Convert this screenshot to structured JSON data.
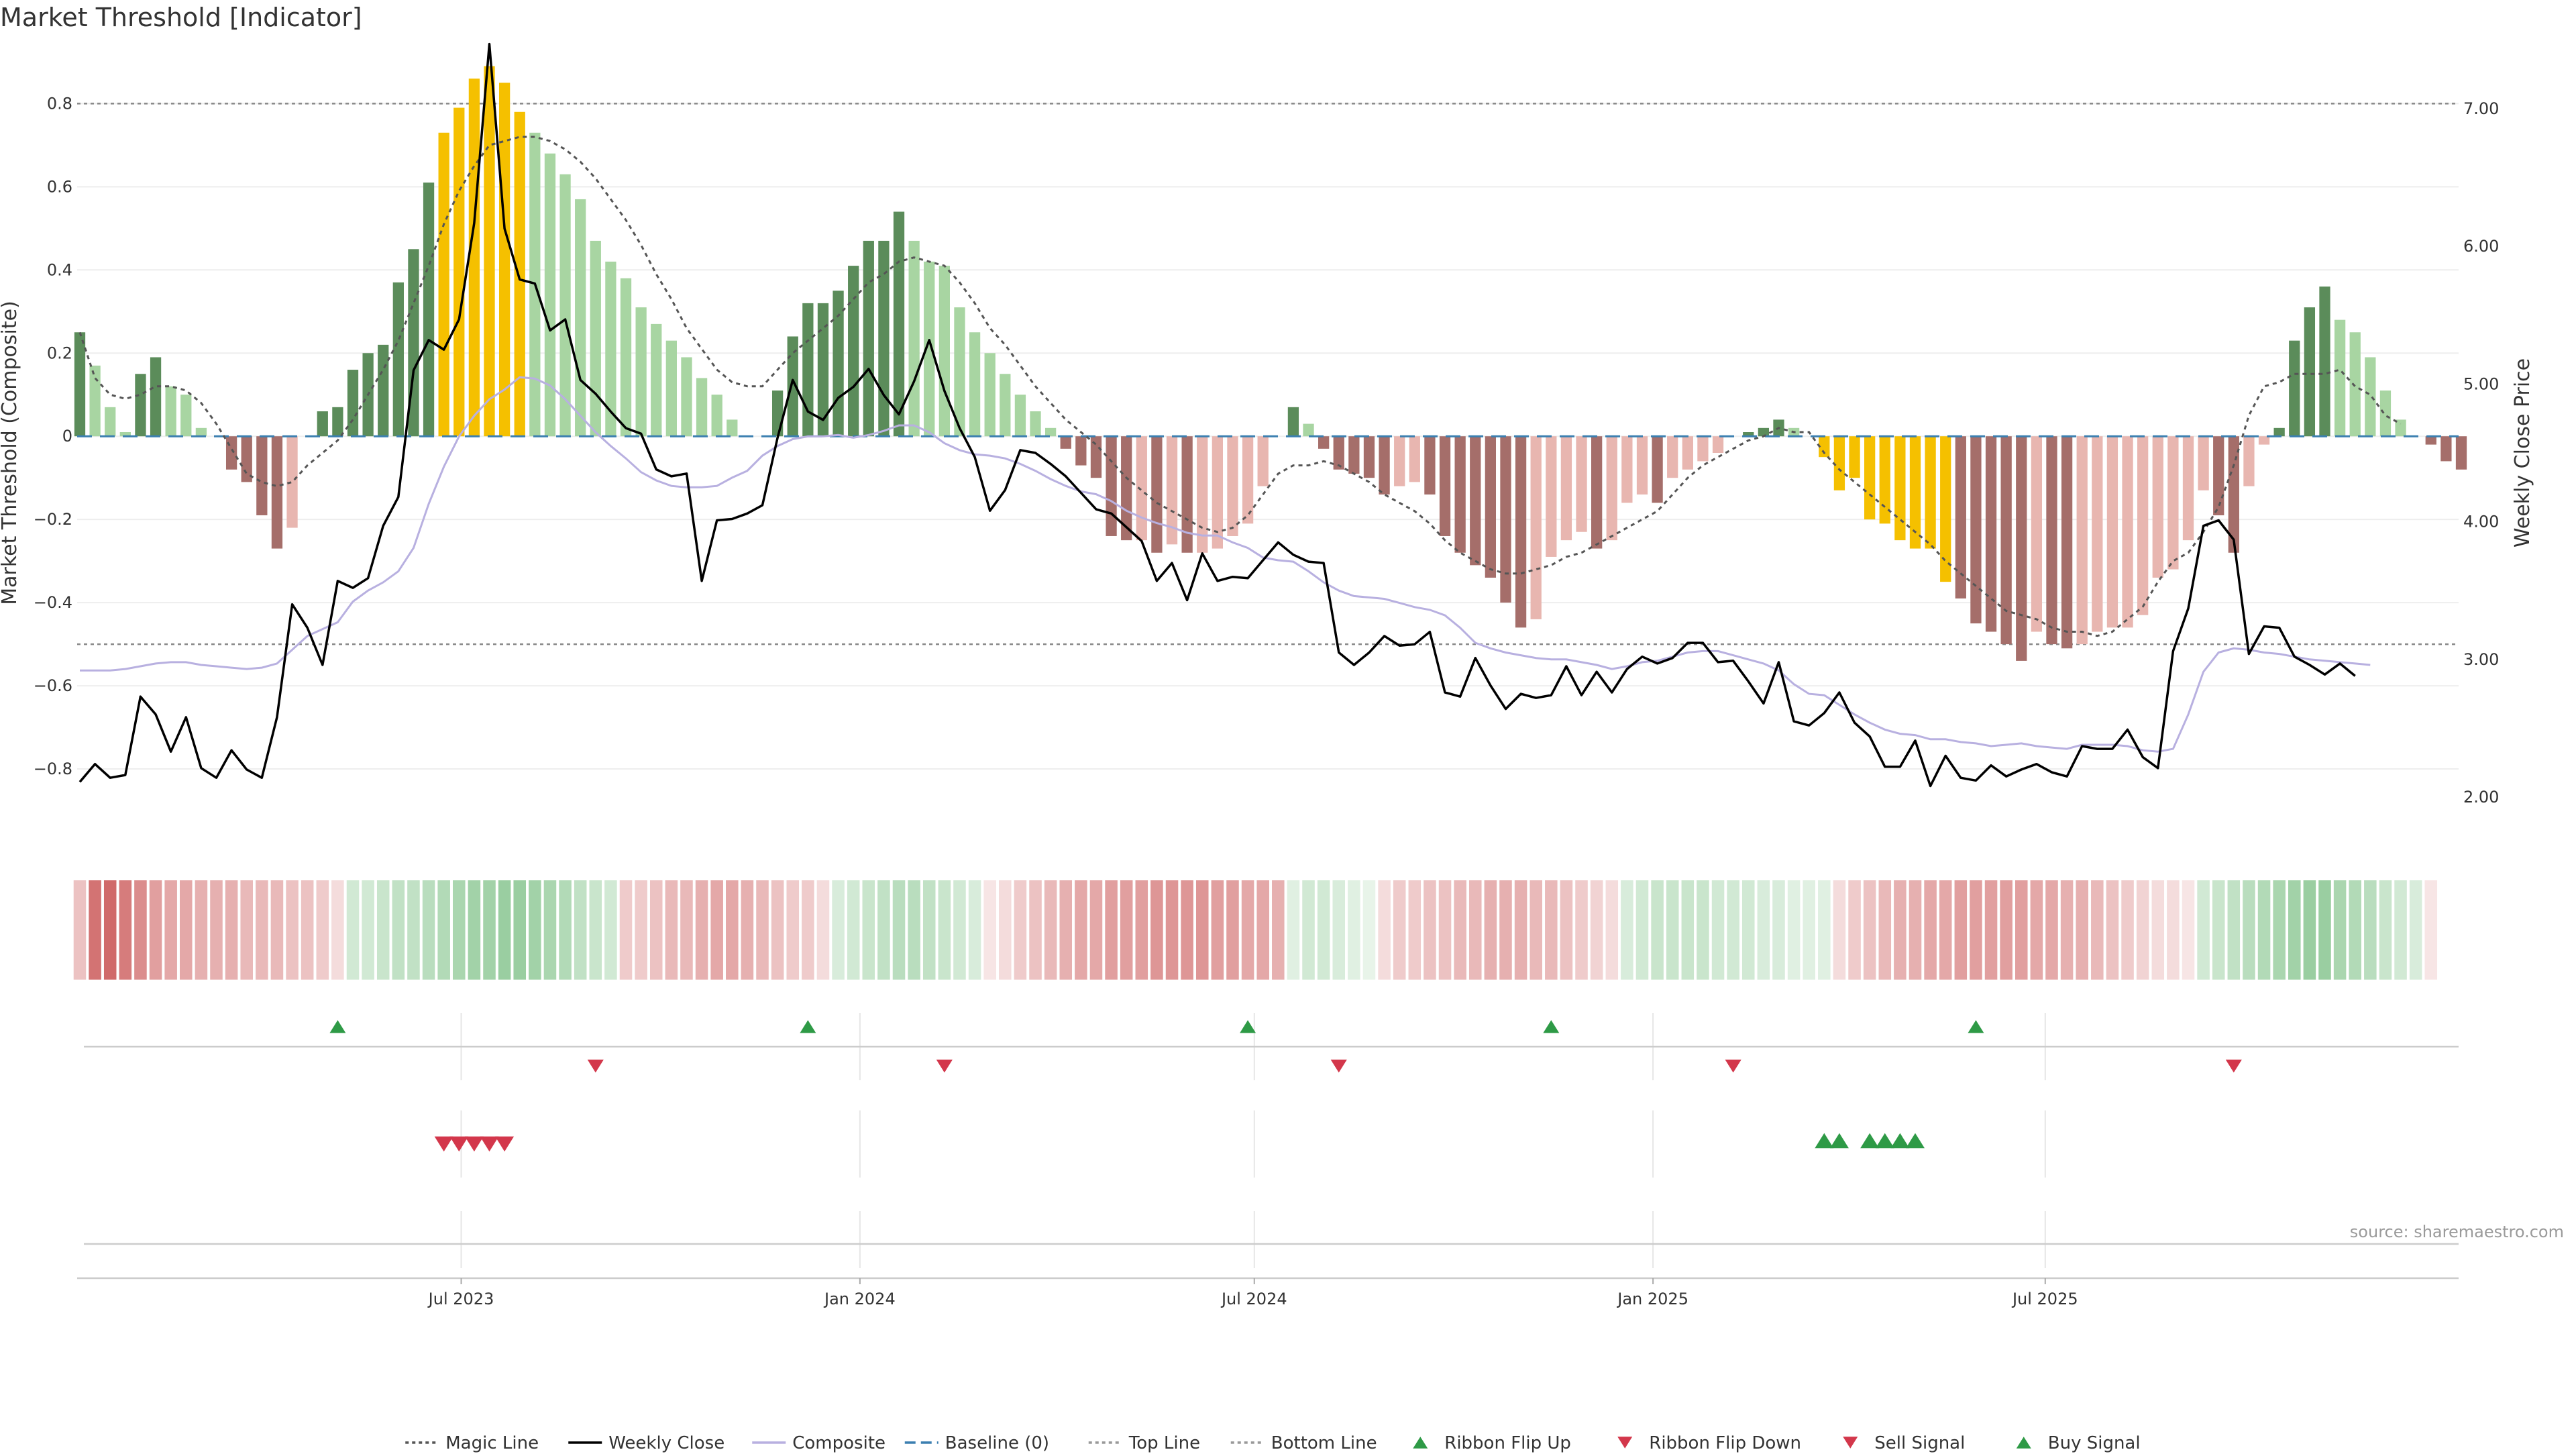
{
  "title": "Market Threshold [Indicator]",
  "source": "source: sharemaestro.com",
  "colors": {
    "bar_pos_strong": "#5b8c5a",
    "bar_pos_weak": "#a8d5a2",
    "bar_neg_strong": "#a56e6a",
    "bar_neg_weak": "#e8b6b0",
    "bar_extreme": "#f5c000",
    "magic": "#555555",
    "close": "#000000",
    "composite": "#b8b0e0",
    "baseline": "#3b7fb0",
    "guide": "#888888",
    "buy": "#2e9a46",
    "sell": "#d3374b"
  },
  "chart_data": [
    {
      "type": "bar",
      "name": "Market Threshold (Composite)",
      "x_start": "2023-01-06",
      "x_step_days": 7,
      "ylabel": "Market Threshold (Composite)",
      "y2label": "Weekly Close Price",
      "ylim": [
        -1.0,
        0.92
      ],
      "y2lim": [
        1.6,
        7.4
      ],
      "yticks": [
        0.8,
        0.6,
        0.4,
        0.2,
        0,
        -0.2,
        -0.4,
        -0.6,
        -0.8
      ],
      "ytick_labels": [
        "0.8",
        "0.6",
        "0.4",
        "0.2",
        "0",
        "−0.2",
        "−0.4",
        "−0.6",
        "−0.8"
      ],
      "y2ticks": [
        7.0,
        6.0,
        5.0,
        4.0,
        3.0,
        2.0
      ],
      "y2tick_labels": [
        "7.00",
        "6.00",
        "5.00",
        "4.00",
        "3.00",
        "2.00"
      ],
      "xticks": [
        {
          "date": "2023-07-01",
          "label": "Jul 2023"
        },
        {
          "date": "2024-01-01",
          "label": "Jan 2024"
        },
        {
          "date": "2024-07-01",
          "label": "Jul 2024"
        },
        {
          "date": "2025-01-01",
          "label": "Jan 2025"
        },
        {
          "date": "2025-07-01",
          "label": "Jul 2025"
        }
      ],
      "top_line": 0.8,
      "bottom_line": -0.5,
      "bars": [
        0.25,
        0.17,
        0.07,
        0.01,
        0.15,
        0.19,
        0.12,
        0.1,
        0.02,
        0,
        -0.08,
        -0.11,
        -0.19,
        -0.27,
        -0.22,
        0,
        0.06,
        0.07,
        0.16,
        0.2,
        0.22,
        0.37,
        0.45,
        0.61,
        0.73,
        0.79,
        0.86,
        0.89,
        0.85,
        0.78,
        0.73,
        0.68,
        0.63,
        0.57,
        0.47,
        0.42,
        0.38,
        0.31,
        0.27,
        0.23,
        0.19,
        0.14,
        0.1,
        0.04,
        0,
        0,
        0.11,
        0.24,
        0.32,
        0.32,
        0.35,
        0.41,
        0.47,
        0.47,
        0.54,
        0.47,
        0.42,
        0.41,
        0.31,
        0.25,
        0.2,
        0.15,
        0.1,
        0.06,
        0.02,
        -0.03,
        -0.07,
        -0.1,
        -0.24,
        -0.25,
        -0.25,
        -0.28,
        -0.26,
        -0.28,
        -0.28,
        -0.27,
        -0.24,
        -0.21,
        -0.12,
        0,
        0.07,
        0.03,
        -0.03,
        -0.08,
        -0.09,
        -0.1,
        -0.14,
        -0.12,
        -0.11,
        -0.14,
        -0.24,
        -0.28,
        -0.31,
        -0.34,
        -0.4,
        -0.46,
        -0.44,
        -0.29,
        -0.25,
        -0.23,
        -0.27,
        -0.25,
        -0.16,
        -0.14,
        -0.16,
        -0.1,
        -0.08,
        -0.06,
        -0.04,
        0,
        0.01,
        0.02,
        0.04,
        0.02,
        0,
        -0.05,
        -0.13,
        -0.1,
        -0.2,
        -0.21,
        -0.25,
        -0.27,
        -0.27,
        -0.35,
        -0.39,
        -0.45,
        -0.47,
        -0.5,
        -0.54,
        -0.47,
        -0.5,
        -0.51,
        -0.5,
        -0.47,
        -0.46,
        -0.46,
        -0.43,
        -0.34,
        -0.32,
        -0.25,
        -0.13,
        -0.19,
        -0.28,
        -0.12,
        -0.02,
        0.02,
        0.23,
        0.31,
        0.36,
        0.28,
        0.25,
        0.19,
        0.11,
        0.04,
        0,
        -0.02,
        -0.06,
        -0.08
      ],
      "extreme_bars": [
        24,
        25,
        26,
        27,
        28,
        29,
        115,
        116,
        117,
        118,
        119,
        120,
        121,
        122,
        123
      ],
      "magic_line": [
        0.25,
        0.14,
        0.1,
        0.09,
        0.1,
        0.12,
        0.12,
        0.11,
        0.08,
        0.03,
        -0.03,
        -0.09,
        -0.11,
        -0.12,
        -0.11,
        -0.07,
        -0.04,
        -0.01,
        0.04,
        0.1,
        0.16,
        0.23,
        0.32,
        0.41,
        0.51,
        0.59,
        0.65,
        0.7,
        0.71,
        0.72,
        0.72,
        0.71,
        0.69,
        0.66,
        0.62,
        0.57,
        0.52,
        0.46,
        0.39,
        0.33,
        0.26,
        0.21,
        0.16,
        0.13,
        0.12,
        0.12,
        0.16,
        0.2,
        0.23,
        0.26,
        0.29,
        0.33,
        0.37,
        0.39,
        0.42,
        0.43,
        0.42,
        0.41,
        0.37,
        0.32,
        0.26,
        0.22,
        0.17,
        0.12,
        0.08,
        0.04,
        0.01,
        -0.02,
        -0.06,
        -0.1,
        -0.13,
        -0.16,
        -0.18,
        -0.2,
        -0.22,
        -0.23,
        -0.22,
        -0.19,
        -0.14,
        -0.09,
        -0.07,
        -0.07,
        -0.06,
        -0.07,
        -0.09,
        -0.11,
        -0.14,
        -0.16,
        -0.18,
        -0.21,
        -0.25,
        -0.28,
        -0.3,
        -0.32,
        -0.33,
        -0.33,
        -0.32,
        -0.31,
        -0.29,
        -0.28,
        -0.26,
        -0.24,
        -0.22,
        -0.2,
        -0.18,
        -0.14,
        -0.1,
        -0.07,
        -0.05,
        -0.03,
        -0.01,
        0,
        0.02,
        0.01,
        0.01,
        -0.04,
        -0.08,
        -0.11,
        -0.14,
        -0.17,
        -0.2,
        -0.23,
        -0.26,
        -0.3,
        -0.33,
        -0.36,
        -0.39,
        -0.42,
        -0.43,
        -0.44,
        -0.46,
        -0.47,
        -0.47,
        -0.48,
        -0.47,
        -0.44,
        -0.41,
        -0.35,
        -0.3,
        -0.28,
        -0.23,
        -0.17,
        -0.07,
        0.05,
        0.12,
        0.13,
        0.15,
        0.15,
        0.15,
        0.16,
        0.12,
        0.1,
        0.05,
        0.03
      ],
      "composite": [
        2.92,
        2.92,
        2.92,
        2.93,
        2.95,
        2.97,
        2.98,
        2.98,
        2.96,
        2.95,
        2.94,
        2.93,
        2.94,
        2.97,
        3.07,
        3.17,
        3.22,
        3.27,
        3.42,
        3.5,
        3.56,
        3.64,
        3.81,
        4.13,
        4.4,
        4.62,
        4.77,
        4.89,
        4.96,
        5.05,
        5.04,
        4.99,
        4.89,
        4.77,
        4.65,
        4.55,
        4.46,
        4.36,
        4.3,
        4.26,
        4.25,
        4.25,
        4.26,
        4.32,
        4.37,
        4.48,
        4.55,
        4.6,
        4.62,
        4.62,
        4.63,
        4.61,
        4.63,
        4.66,
        4.7,
        4.7,
        4.65,
        4.57,
        4.52,
        4.49,
        4.48,
        4.46,
        4.42,
        4.37,
        4.31,
        4.26,
        4.22,
        4.2,
        4.15,
        4.08,
        4.03,
        3.99,
        3.96,
        3.92,
        3.9,
        3.9,
        3.85,
        3.81,
        3.74,
        3.72,
        3.71,
        3.64,
        3.56,
        3.5,
        3.46,
        3.45,
        3.44,
        3.41,
        3.38,
        3.36,
        3.32,
        3.23,
        3.12,
        3.08,
        3.05,
        3.03,
        3.01,
        3.0,
        3.0,
        2.98,
        2.96,
        2.93,
        2.95,
        2.98,
        2.99,
        3.02,
        3.05,
        3.06,
        3.06,
        3.03,
        3.0,
        2.97,
        2.92,
        2.82,
        2.75,
        2.74,
        2.67,
        2.6,
        2.54,
        2.49,
        2.46,
        2.45,
        2.42,
        2.42,
        2.4,
        2.39,
        2.37,
        2.38,
        2.39,
        2.37,
        2.36,
        2.35,
        2.38,
        2.38,
        2.38,
        2.37,
        2.34,
        2.33,
        2.35,
        2.6,
        2.91,
        3.05,
        3.08,
        3.07,
        3.05,
        3.04,
        3.02,
        3.0,
        2.99,
        2.98,
        2.97,
        2.96
      ],
      "weekly_close": [
        2.11,
        2.24,
        2.14,
        2.16,
        2.73,
        2.6,
        2.33,
        2.58,
        2.21,
        2.14,
        2.34,
        2.2,
        2.14,
        2.58,
        3.4,
        3.23,
        2.96,
        3.57,
        3.52,
        3.59,
        3.97,
        4.18,
        5.1,
        5.32,
        5.25,
        5.47,
        6.17,
        7.47,
        6.13,
        5.76,
        5.73,
        5.39,
        5.47,
        5.03,
        4.93,
        4.8,
        4.68,
        4.64,
        4.38,
        4.33,
        4.35,
        3.57,
        4.01,
        4.02,
        4.06,
        4.12,
        4.61,
        5.03,
        4.8,
        4.74,
        4.9,
        4.98,
        5.11,
        4.92,
        4.78,
        5.02,
        5.32,
        4.95,
        4.68,
        4.47,
        4.08,
        4.23,
        4.52,
        4.5,
        4.42,
        4.33,
        4.21,
        4.09,
        4.06,
        3.96,
        3.86,
        3.57,
        3.7,
        3.43,
        3.77,
        3.57,
        3.6,
        3.59,
        3.72,
        3.85,
        3.76,
        3.71,
        3.7,
        3.05,
        2.96,
        3.05,
        3.17,
        3.1,
        3.11,
        3.2,
        2.76,
        2.73,
        3.01,
        2.81,
        2.64,
        2.75,
        2.72,
        2.74,
        2.95,
        2.74,
        2.91,
        2.76,
        2.93,
        3.02,
        2.97,
        3.01,
        3.12,
        3.12,
        2.98,
        2.99,
        2.84,
        2.68,
        2.98,
        2.55,
        2.52,
        2.61,
        2.76,
        2.54,
        2.44,
        2.22,
        2.22,
        2.41,
        2.08,
        2.3,
        2.14,
        2.12,
        2.23,
        2.15,
        2.2,
        2.24,
        2.18,
        2.15,
        2.37,
        2.35,
        2.35,
        2.49,
        2.29,
        2.21,
        3.06,
        3.37,
        3.97,
        4.01,
        3.87,
        3.04,
        3.24,
        3.23,
        3.02,
        2.96,
        2.89,
        2.97,
        2.88
      ]
    },
    {
      "type": "heatmap",
      "name": "ribbon",
      "values": [
        -0.35,
        -0.8,
        -0.85,
        -0.75,
        -0.65,
        -0.55,
        -0.5,
        -0.5,
        -0.45,
        -0.45,
        -0.45,
        -0.4,
        -0.4,
        -0.4,
        -0.35,
        -0.35,
        -0.3,
        -0.2,
        0.3,
        0.3,
        0.35,
        0.4,
        0.4,
        0.45,
        0.5,
        0.55,
        0.6,
        0.6,
        0.65,
        0.65,
        0.6,
        0.55,
        0.5,
        0.4,
        0.35,
        0.3,
        -0.3,
        -0.3,
        -0.35,
        -0.4,
        -0.4,
        -0.45,
        -0.5,
        -0.5,
        -0.45,
        -0.4,
        -0.35,
        -0.3,
        -0.3,
        -0.2,
        0.25,
        0.3,
        0.35,
        0.4,
        0.45,
        0.45,
        0.4,
        0.35,
        0.3,
        0.25,
        -0.15,
        -0.2,
        -0.3,
        -0.35,
        -0.4,
        -0.45,
        -0.5,
        -0.5,
        -0.55,
        -0.55,
        -0.55,
        -0.6,
        -0.6,
        -0.6,
        -0.6,
        -0.55,
        -0.55,
        -0.5,
        -0.5,
        -0.45,
        0.2,
        0.3,
        0.3,
        0.25,
        0.2,
        0.15,
        -0.2,
        -0.3,
        -0.3,
        -0.35,
        -0.35,
        -0.4,
        -0.4,
        -0.45,
        -0.45,
        -0.45,
        -0.4,
        -0.4,
        -0.35,
        -0.3,
        -0.25,
        -0.2,
        0.25,
        0.3,
        0.35,
        0.35,
        0.35,
        0.35,
        0.3,
        0.3,
        0.3,
        0.25,
        0.25,
        0.2,
        0.2,
        0.2,
        -0.2,
        -0.3,
        -0.35,
        -0.4,
        -0.45,
        -0.45,
        -0.5,
        -0.5,
        -0.55,
        -0.55,
        -0.55,
        -0.55,
        -0.55,
        -0.5,
        -0.5,
        -0.45,
        -0.45,
        -0.4,
        -0.35,
        -0.3,
        -0.25,
        -0.2,
        -0.2,
        -0.15,
        0.3,
        0.35,
        0.4,
        0.45,
        0.5,
        0.55,
        0.6,
        0.65,
        0.65,
        0.55,
        0.5,
        0.45,
        0.35,
        0.3,
        0.25,
        -0.15
      ]
    },
    {
      "type": "scatter",
      "name": "signals",
      "ribbon_flip_up": [
        17,
        48,
        77,
        97,
        125
      ],
      "ribbon_flip_down": [
        34,
        57,
        83,
        109,
        142
      ],
      "sell_signal": [
        24,
        25,
        26,
        27,
        28
      ],
      "buy_signal": [
        115,
        116,
        118,
        119,
        120,
        121
      ]
    }
  ],
  "legend": [
    {
      "label": "Magic Line",
      "icon": "dotted-line",
      "color": "#555555"
    },
    {
      "label": "Weekly Close",
      "icon": "solid-line",
      "color": "#000000"
    },
    {
      "label": "Composite",
      "icon": "solid-line",
      "color": "#b8b0e0"
    },
    {
      "label": "Baseline (0)",
      "icon": "dashed-line",
      "color": "#3b7fb0"
    },
    {
      "label": "Top Line",
      "icon": "dotted-line",
      "color": "#999999"
    },
    {
      "label": "Bottom Line",
      "icon": "dotted-line",
      "color": "#999999"
    },
    {
      "label": "Ribbon Flip Up",
      "icon": "triangle-up",
      "color": "#2e9a46"
    },
    {
      "label": "Ribbon Flip Down",
      "icon": "triangle-down",
      "color": "#d3374b"
    },
    {
      "label": "Sell Signal",
      "icon": "triangle-down",
      "color": "#d3374b"
    },
    {
      "label": "Buy Signal",
      "icon": "triangle-up",
      "color": "#2e9a46"
    }
  ]
}
